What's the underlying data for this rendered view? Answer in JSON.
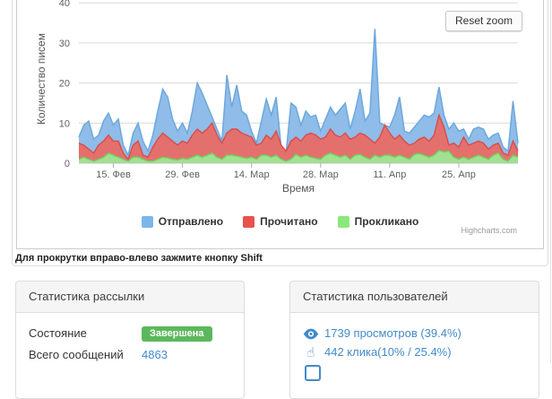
{
  "chart": {
    "reset_zoom": "Reset zoom",
    "credits": "Highcharts.com",
    "scroll_hint": "Для прокрутки вправо-влево зажмите кнопку Shift"
  },
  "chart_data": {
    "type": "area",
    "title": "",
    "xlabel": "Время",
    "ylabel": "Количество писем",
    "ylim": [
      0,
      40
    ],
    "yticks": [
      0,
      10,
      20,
      30,
      40
    ],
    "grid": true,
    "legend_position": "bottom",
    "x_ticks": [
      {
        "day": 7,
        "label": "15. Фев"
      },
      {
        "day": 21,
        "label": "29. Фев"
      },
      {
        "day": 35,
        "label": "14. Мар"
      },
      {
        "day": 49,
        "label": "28. Мар"
      },
      {
        "day": 63,
        "label": "11. Апр"
      },
      {
        "day": 77,
        "label": "25. Апр"
      }
    ],
    "series": [
      {
        "name": "Отправлено",
        "swatch": "#7cb5ec",
        "stroke": "#6da8dc",
        "fill": "#8fbce9",
        "values": [
          6.5,
          9.5,
          10.5,
          6,
          7,
          10.5,
          12.5,
          9.5,
          11,
          4.5,
          2,
          7.5,
          10,
          5.5,
          3,
          7,
          13,
          18.5,
          16.5,
          11,
          8,
          10,
          7.5,
          13,
          20,
          17.5,
          14.5,
          11.5,
          8.5,
          5.5,
          22,
          14,
          19.5,
          13,
          12,
          8,
          5,
          10.5,
          16,
          12,
          16.5,
          4,
          2.5,
          15,
          14,
          9.5,
          13,
          11.5,
          12,
          8,
          11,
          14,
          12,
          13.5,
          15,
          8.5,
          13,
          18.5,
          10.5,
          12.5,
          33.5,
          10,
          9.5,
          9,
          12,
          16.5,
          8,
          7.5,
          9,
          10.5,
          12,
          11.5,
          12.5,
          19,
          12,
          8.5,
          10,
          8,
          8.5,
          6,
          8.5,
          9,
          8.5,
          6,
          7,
          7.5,
          4,
          3,
          15.5,
          5
        ]
      },
      {
        "name": "Прочитано",
        "swatch": "#e9534f",
        "stroke": "#d94f4c",
        "fill": "#e4706d",
        "values": [
          5,
          4.5,
          3.5,
          2.5,
          4.5,
          5.5,
          7,
          5.5,
          5.5,
          2.5,
          1,
          4.5,
          5.5,
          2,
          1.5,
          4,
          6,
          7.5,
          6.5,
          5.5,
          4.5,
          5.5,
          5,
          7,
          8.5,
          7.5,
          8.5,
          10,
          7,
          5,
          7.5,
          8.5,
          8.5,
          7.5,
          7,
          6.5,
          4.5,
          5,
          7,
          6,
          8,
          4.5,
          3,
          5.5,
          6.5,
          5.5,
          7,
          7.5,
          7,
          6,
          6.5,
          8.5,
          7,
          6.5,
          7.5,
          6,
          6.5,
          7.5,
          7,
          6,
          5,
          6.5,
          9.5,
          7.5,
          6,
          7,
          5.5,
          4.5,
          5,
          6,
          6.5,
          5.5,
          7,
          12,
          9,
          4.5,
          5,
          4,
          6.5,
          4.5,
          5,
          5.5,
          5,
          3.5,
          4.5,
          5,
          2.5,
          2,
          5.5,
          3
        ]
      },
      {
        "name": "Прокликано",
        "swatch": "#8ce87b",
        "stroke": "#74cd63",
        "fill": "#9fe28f",
        "values": [
          1,
          1.5,
          1,
          0.5,
          1,
          1.5,
          2.5,
          2,
          1.5,
          1,
          0.5,
          1.5,
          1.5,
          1,
          0.5,
          0.5,
          1,
          1.5,
          1.3,
          1,
          0.8,
          1.2,
          1,
          1.5,
          2,
          1.5,
          2,
          2.5,
          1.5,
          1,
          2,
          2,
          1.8,
          1.5,
          1.2,
          1.5,
          1,
          2,
          2,
          1.5,
          2,
          1,
          0.5,
          1,
          2.2,
          1.5,
          2,
          1.5,
          1.2,
          1,
          2,
          2.5,
          2,
          1.5,
          2,
          1,
          2,
          2.2,
          1.5,
          1,
          2,
          1.5,
          2,
          2,
          1.5,
          2,
          1.5,
          1,
          2.2,
          2.4,
          2,
          1.5,
          2,
          3.2,
          2.8,
          3,
          1.5,
          1,
          1.5,
          1,
          1.5,
          2,
          1.5,
          1,
          2,
          2.5,
          1,
          0.5,
          2,
          1.5
        ]
      }
    ]
  },
  "mailing_stats": {
    "title": "Статистика рассылки",
    "state_label": "Состояние",
    "state_badge": "Завершена",
    "badge_color": "#5cb85c",
    "total_label": "Всего сообщений",
    "total_value": "4863"
  },
  "user_stats": {
    "title": "Статистика пользователей",
    "link_color": "#428bca",
    "views": "1739 просмотров (39.4%)",
    "clicks": "442 клика(10% / 25.4%)"
  }
}
